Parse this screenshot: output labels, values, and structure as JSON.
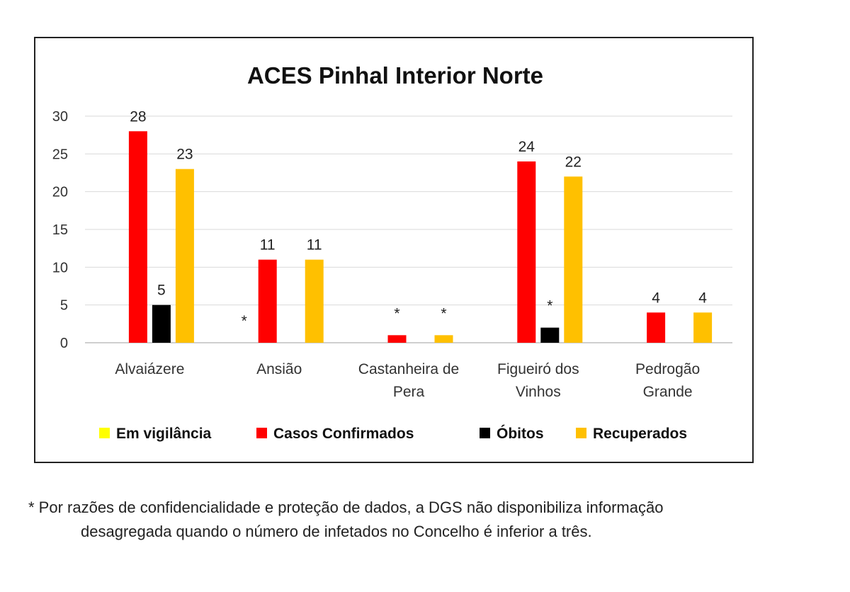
{
  "chart_data": {
    "type": "bar",
    "title": "ACES Pinhal Interior Norte",
    "xlabel": "",
    "ylabel": "",
    "ylim": [
      0,
      30
    ],
    "yticks": [
      "0",
      "5",
      "10",
      "15",
      "20",
      "25",
      "30"
    ],
    "grid": true,
    "legend_position": "bottom",
    "categories": [
      [
        "Alvaiázere"
      ],
      [
        "Ansião"
      ],
      [
        "Castanheira de",
        "Pera"
      ],
      [
        "Figueiró dos",
        "Vinhos"
      ],
      [
        "Pedrogão",
        "Grande"
      ]
    ],
    "series": [
      {
        "name": "Em vigilância",
        "color": "#FFFF00",
        "values": [
          null,
          null,
          null,
          null,
          null
        ],
        "labels": [
          "",
          "*",
          "",
          "",
          ""
        ]
      },
      {
        "name": "Casos Confirmados",
        "color": "#FF0000",
        "values": [
          28,
          11,
          1,
          24,
          4
        ],
        "labels": [
          "28",
          "11",
          "*",
          "24",
          "4"
        ]
      },
      {
        "name": "Óbitos",
        "color": "#000000",
        "values": [
          5,
          null,
          null,
          2,
          null
        ],
        "labels": [
          "5",
          "",
          "",
          "*",
          ""
        ]
      },
      {
        "name": "Recuperados",
        "color": "#FFC000",
        "values": [
          23,
          11,
          1,
          22,
          4
        ],
        "labels": [
          "23",
          "11",
          "*",
          "22",
          "4"
        ]
      }
    ]
  },
  "footnote": {
    "line1": "* Por razões de confidencialidade e proteção de dados, a DGS não disponibiliza informação",
    "line2": "desagregada quando o número de infetados no Concelho é inferior a três."
  }
}
